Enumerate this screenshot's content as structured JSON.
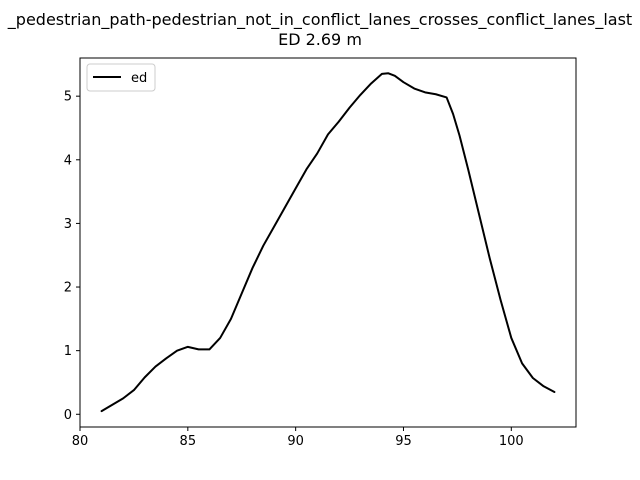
{
  "chart_data": {
    "type": "line",
    "title": "_pedestrian_path-pedestrian_not_in_conflict_lanes_crosses_conflict_lanes_last",
    "subtitle": "ED 2.69 m",
    "xlabel": "",
    "ylabel": "",
    "xlim": [
      80,
      103
    ],
    "ylim": [
      -0.2,
      5.6
    ],
    "xticks": [
      80,
      85,
      90,
      95,
      100
    ],
    "yticks": [
      0,
      1,
      2,
      3,
      4,
      5
    ],
    "grid": false,
    "legend_position": "upper-left",
    "line_color": "#000000",
    "series": [
      {
        "name": "ed",
        "x": [
          81.0,
          81.5,
          82.0,
          82.5,
          83.0,
          83.5,
          84.0,
          84.5,
          85.0,
          85.5,
          86.0,
          86.5,
          87.0,
          87.5,
          88.0,
          88.5,
          89.0,
          89.5,
          90.0,
          90.5,
          91.0,
          91.5,
          92.0,
          92.5,
          93.0,
          93.5,
          94.0,
          94.3,
          94.6,
          95.0,
          95.5,
          96.0,
          96.5,
          97.0,
          97.3,
          97.6,
          98.0,
          98.5,
          99.0,
          99.5,
          100.0,
          100.5,
          101.0,
          101.5,
          102.0
        ],
        "values": [
          0.05,
          0.15,
          0.25,
          0.38,
          0.58,
          0.75,
          0.88,
          1.0,
          1.06,
          1.02,
          1.02,
          1.2,
          1.5,
          1.9,
          2.3,
          2.65,
          2.95,
          3.25,
          3.55,
          3.85,
          4.1,
          4.4,
          4.6,
          4.82,
          5.02,
          5.2,
          5.35,
          5.36,
          5.32,
          5.22,
          5.12,
          5.06,
          5.03,
          4.98,
          4.72,
          4.38,
          3.85,
          3.15,
          2.45,
          1.8,
          1.2,
          0.8,
          0.57,
          0.44,
          0.35
        ]
      }
    ]
  }
}
